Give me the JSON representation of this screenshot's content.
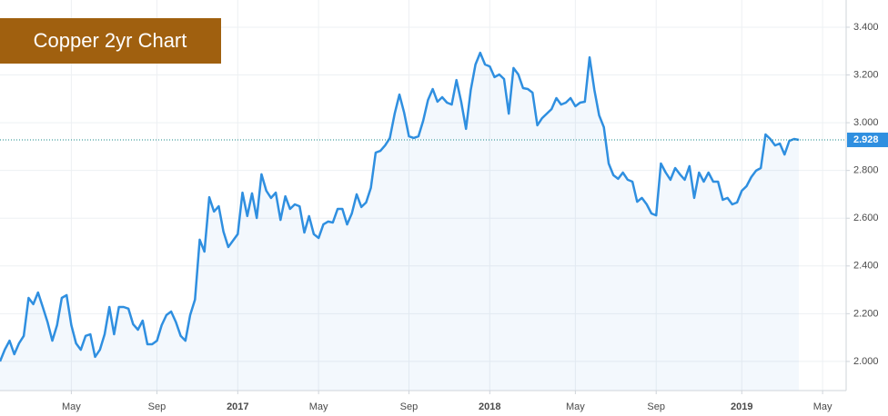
{
  "chart_data": {
    "type": "line",
    "title": "Copper 2yr Chart",
    "color": "#2f8fe0",
    "categories": [
      null,
      null,
      null,
      null,
      null,
      null,
      null,
      null,
      null,
      null,
      null,
      null,
      null,
      null,
      null,
      "May",
      null,
      null,
      null,
      null,
      null,
      null,
      null,
      null,
      null,
      null,
      null,
      null,
      null,
      null,
      null,
      null,
      null,
      "Sep",
      null,
      null,
      null,
      null,
      null,
      null,
      null,
      null,
      null,
      null,
      null,
      null,
      null,
      null,
      null,
      null,
      "2017",
      null,
      null,
      null,
      null,
      null,
      null,
      null,
      null,
      null,
      null,
      null,
      null,
      null,
      null,
      null,
      null,
      "May",
      null,
      null,
      null,
      null,
      null,
      null,
      null,
      null,
      null,
      null,
      null,
      null,
      null,
      null,
      null,
      null,
      null,
      null,
      "Sep",
      null,
      null,
      null,
      null,
      null,
      null,
      null,
      null,
      null,
      null,
      null,
      null,
      null,
      null,
      null,
      null,
      "2018",
      null,
      null,
      null,
      null,
      null,
      null,
      null,
      null,
      null,
      null,
      null,
      null,
      null,
      null,
      null,
      null,
      null,
      "May",
      null,
      null,
      null,
      null,
      null,
      null,
      null,
      null,
      null,
      null,
      null,
      null,
      null,
      null,
      null,
      null,
      "Sep",
      null,
      null,
      null,
      null,
      null,
      null,
      null,
      null,
      null,
      null,
      null,
      null,
      null,
      null,
      null,
      null,
      null,
      "2019",
      null,
      null,
      null,
      null,
      null,
      null,
      null,
      null,
      null,
      null,
      null,
      null,
      null,
      null,
      null,
      null,
      "May"
    ],
    "values": [
      2.0,
      2.049,
      2.087,
      2.03,
      2.076,
      2.107,
      2.266,
      2.24,
      2.289,
      2.228,
      2.164,
      2.087,
      2.152,
      2.266,
      2.278,
      2.152,
      2.076,
      2.049,
      2.107,
      2.114,
      2.019,
      2.049,
      2.114,
      2.228,
      2.114,
      2.228,
      2.228,
      2.221,
      2.156,
      2.133,
      2.171,
      2.072,
      2.072,
      2.087,
      2.152,
      2.194,
      2.209,
      2.164,
      2.107,
      2.087,
      2.194,
      2.259,
      2.51,
      2.46,
      2.688,
      2.628,
      2.65,
      2.544,
      2.479,
      2.506,
      2.533,
      2.707,
      2.609,
      2.704,
      2.601,
      2.784,
      2.715,
      2.685,
      2.707,
      2.593,
      2.692,
      2.639,
      2.658,
      2.65,
      2.54,
      2.609,
      2.533,
      2.517,
      2.574,
      2.586,
      2.582,
      2.639,
      2.639,
      2.574,
      2.62,
      2.7,
      2.647,
      2.666,
      2.727,
      2.875,
      2.882,
      2.905,
      2.936,
      3.038,
      3.118,
      3.042,
      2.943,
      2.936,
      2.943,
      3.008,
      3.095,
      3.141,
      3.088,
      3.107,
      3.084,
      3.076,
      3.179,
      3.088,
      2.974,
      3.137,
      3.244,
      3.293,
      3.244,
      3.236,
      3.191,
      3.202,
      3.183,
      3.038,
      3.229,
      3.202,
      3.145,
      3.141,
      3.126,
      2.989,
      3.019,
      3.038,
      3.057,
      3.103,
      3.076,
      3.084,
      3.103,
      3.069,
      3.084,
      3.088,
      3.274,
      3.137,
      3.031,
      2.981,
      2.829,
      2.78,
      2.765,
      2.791,
      2.761,
      2.753,
      2.669,
      2.685,
      2.658,
      2.62,
      2.612,
      2.829,
      2.791,
      2.761,
      2.81,
      2.784,
      2.761,
      2.818,
      2.685,
      2.791,
      2.753,
      2.791,
      2.753,
      2.753,
      2.677,
      2.685,
      2.658,
      2.666,
      2.715,
      2.734,
      2.772,
      2.799,
      2.81,
      2.951,
      2.932,
      2.905,
      2.913,
      2.867,
      2.924,
      2.932,
      2.928,
      null,
      null,
      null,
      null,
      null
    ],
    "ylim": [
      1.878,
      3.514
    ],
    "yticks": [
      {
        "value": 2.0,
        "label": "2.000"
      },
      {
        "value": 2.2,
        "label": "2.200"
      },
      {
        "value": 2.4,
        "label": "2.400"
      },
      {
        "value": 2.6,
        "label": "2.600"
      },
      {
        "value": 2.8,
        "label": "2.800"
      },
      {
        "value": 3.0,
        "label": "3.000"
      },
      {
        "value": 3.2,
        "label": "3.200"
      },
      {
        "value": 3.4,
        "label": "3.400"
      }
    ],
    "last_price": {
      "value": 2.928,
      "label": "2.928"
    },
    "grid": true
  }
}
